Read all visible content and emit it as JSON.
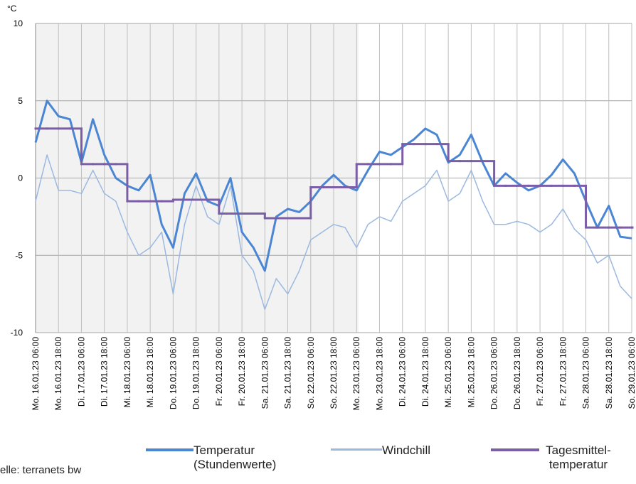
{
  "chart_data": {
    "type": "line",
    "y_label": "°C",
    "categories": [
      "Mo. 16.01.23 06:00",
      null,
      "Mo. 16.01.23 18:00",
      null,
      "Di. 17.01.23 06:00",
      null,
      "Di. 17.01.23 18:00",
      null,
      "Mi. 18.01.23 06:00",
      null,
      "Mi. 18.01.23 18:00",
      null,
      "Do. 19.01.23 06:00",
      null,
      "Do. 19.01.23 18:00",
      null,
      "Fr. 20.01.23 06:00",
      null,
      "Fr. 20.01.23 18:00",
      null,
      "Sa. 21.01.23 06:00",
      null,
      "Sa. 21.01.23 18:00",
      null,
      "So. 22.01.23 06:00",
      null,
      "So. 22.01.23 18:00",
      null,
      "Mo. 23.01.23 06:00",
      null,
      "Mo. 23.01.23 18:00",
      null,
      "Di. 24.01.23 06:00",
      null,
      "Di. 24.01.23 18:00",
      null,
      "Mi. 25.01.23 06:00",
      null,
      "Mi. 25.01.23 18:00",
      null,
      "Do. 26.01.23 06:00",
      null,
      "Do. 26.01.23 18:00",
      null,
      "Fr. 27.01.23 06:00",
      null,
      "Fr. 27.01.23 18:00",
      null,
      "Sa. 28.01.23 06:00",
      null,
      "Sa. 28.01.23 18:00",
      null,
      "So. 29.01.23 06:00"
    ],
    "series": [
      {
        "name": "Temperatur (Stundenwerte)",
        "color": "#4a86d4",
        "width": 3,
        "values": [
          2.3,
          5.0,
          4.0,
          3.8,
          1.0,
          3.8,
          1.5,
          0.0,
          -0.5,
          -0.8,
          0.2,
          -3.0,
          -4.5,
          -1.0,
          0.3,
          -1.5,
          -1.8,
          0.0,
          -3.5,
          -4.5,
          -6.0,
          -2.5,
          -2.0,
          -2.2,
          -1.5,
          -0.5,
          0.2,
          -0.5,
          -0.8,
          0.5,
          1.7,
          1.5,
          2.0,
          2.5,
          3.2,
          2.8,
          1.0,
          1.5,
          2.8,
          1.0,
          -0.5,
          0.3,
          -0.3,
          -0.8,
          -0.5,
          0.2,
          1.2,
          0.3,
          -1.5,
          -3.2,
          -1.8,
          -3.8,
          -3.9
        ]
      },
      {
        "name": "Windchill",
        "color": "#9bb9e0",
        "width": 1.5,
        "values": [
          -1.5,
          1.5,
          -0.8,
          -0.8,
          -1.0,
          0.5,
          -1.0,
          -1.5,
          -3.5,
          -5.0,
          -4.5,
          -3.5,
          -7.5,
          -3.0,
          -0.5,
          -2.5,
          -3.0,
          -0.5,
          -5.0,
          -6.0,
          -8.5,
          -6.5,
          -7.5,
          -6.0,
          -4.0,
          -3.5,
          -3.0,
          -3.2,
          -4.5,
          -3.0,
          -2.5,
          -2.8,
          -1.5,
          -1.0,
          -0.5,
          0.5,
          -1.5,
          -1.0,
          0.5,
          -1.5,
          -3.0,
          -3.0,
          -2.8,
          -3.0,
          -3.5,
          -3.0,
          -2.0,
          -3.3,
          -4.0,
          -5.5,
          -5.0,
          -7.0,
          -7.8
        ]
      },
      {
        "name": "Tagesmittel-temperatur",
        "color": "#7b5ea7",
        "width": 3,
        "step": true,
        "values": [
          3.2,
          3.2,
          3.2,
          3.2,
          0.9,
          0.9,
          0.9,
          0.9,
          -1.5,
          -1.5,
          -1.5,
          -1.5,
          -1.4,
          -1.4,
          -1.4,
          -1.4,
          -2.3,
          -2.3,
          -2.3,
          -2.3,
          -2.6,
          -2.6,
          -2.6,
          -2.6,
          -0.6,
          -0.6,
          -0.6,
          -0.6,
          0.9,
          0.9,
          0.9,
          0.9,
          2.2,
          2.2,
          2.2,
          2.2,
          1.1,
          1.1,
          1.1,
          1.1,
          -0.5,
          -0.5,
          -0.5,
          -0.5,
          -0.5,
          -0.5,
          -0.5,
          -0.5,
          -3.2,
          -3.2,
          -3.2,
          -3.2,
          -3.2
        ]
      }
    ],
    "ylim": [
      -10,
      10
    ],
    "yticks": [
      -10,
      -5,
      0,
      5,
      10
    ],
    "grid": true,
    "source": "elle: terranets bw"
  }
}
